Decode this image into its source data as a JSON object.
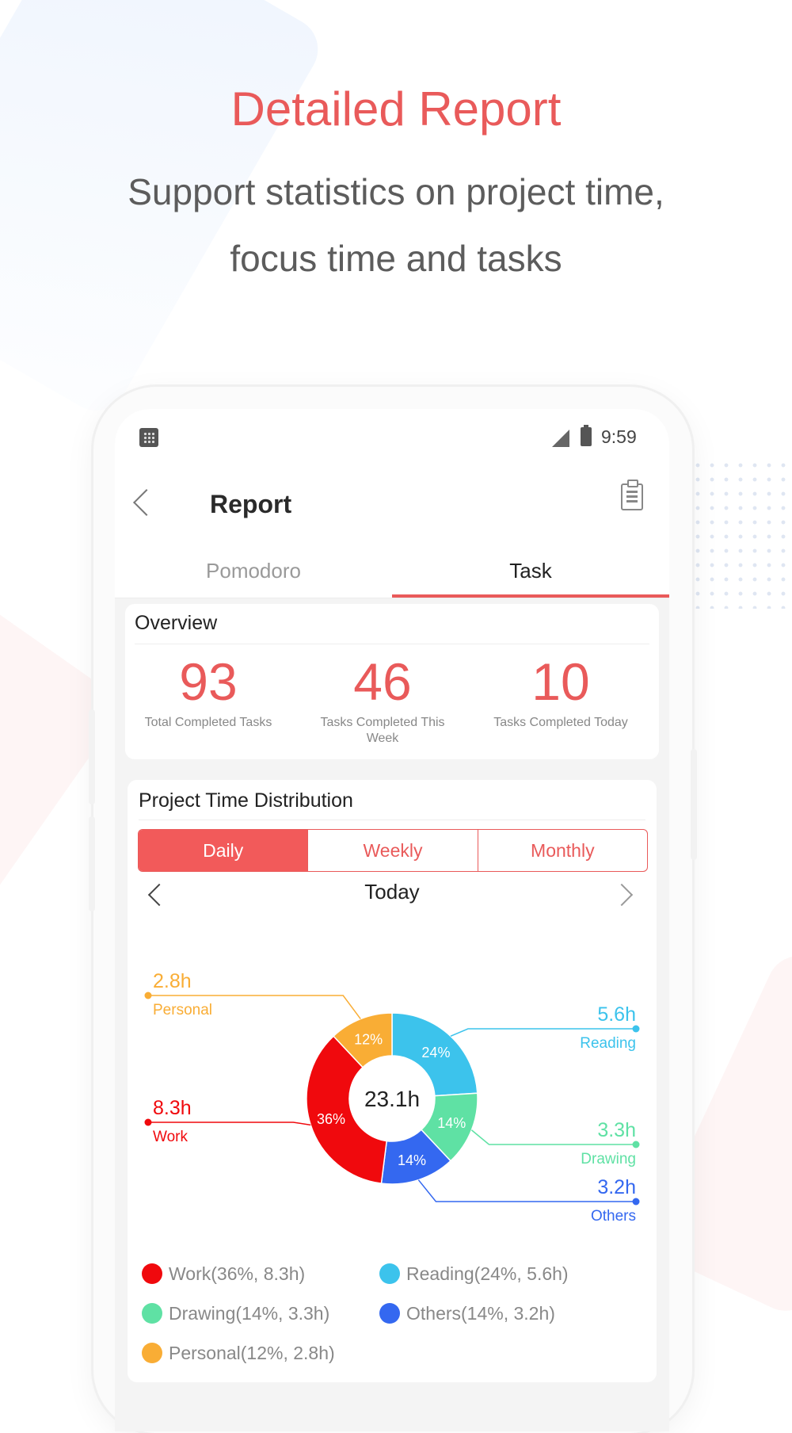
{
  "header": {
    "title": "Detailed Report",
    "subtitle_line1": "Support statistics on project time,",
    "subtitle_line2": "focus time and tasks"
  },
  "status_bar": {
    "time": "9:59"
  },
  "app_bar": {
    "title": "Report"
  },
  "tabs": [
    {
      "label": "Pomodoro",
      "active": false
    },
    {
      "label": "Task",
      "active": true
    }
  ],
  "overview": {
    "title": "Overview",
    "stats": [
      {
        "value": "93",
        "label": "Total Completed Tasks"
      },
      {
        "value": "46",
        "label": "Tasks Completed This Week"
      },
      {
        "value": "10",
        "label": "Tasks Completed Today"
      }
    ]
  },
  "distribution": {
    "title": "Project Time Distribution",
    "periods": [
      "Daily",
      "Weekly",
      "Monthly"
    ],
    "active_period": "Daily",
    "date_label": "Today",
    "center_label": "23.1h"
  },
  "chart_data": {
    "type": "pie",
    "donut": true,
    "total": "23.1h",
    "slices": [
      {
        "name": "Work",
        "percent": 36,
        "hours": 8.3,
        "pct_label": "36%",
        "hours_label": "8.3h",
        "legend": "Work(36%, 8.3h)",
        "color": "#f0090d"
      },
      {
        "name": "Reading",
        "percent": 24,
        "hours": 5.6,
        "pct_label": "24%",
        "hours_label": "5.6h",
        "legend": "Reading(24%, 5.6h)",
        "color": "#3cc3ec"
      },
      {
        "name": "Drawing",
        "percent": 14,
        "hours": 3.3,
        "pct_label": "14%",
        "hours_label": "3.3h",
        "legend": "Drawing(14%, 3.3h)",
        "color": "#5fe1a4"
      },
      {
        "name": "Others",
        "percent": 14,
        "hours": 3.2,
        "pct_label": "14%",
        "hours_label": "3.2h",
        "legend": "Others(14%, 3.2h)",
        "color": "#3468f0"
      },
      {
        "name": "Personal",
        "percent": 12,
        "hours": 2.8,
        "pct_label": "12%",
        "hours_label": "2.8h",
        "legend": "Personal(12%, 2.8h)",
        "color": "#f9ad35"
      }
    ]
  }
}
